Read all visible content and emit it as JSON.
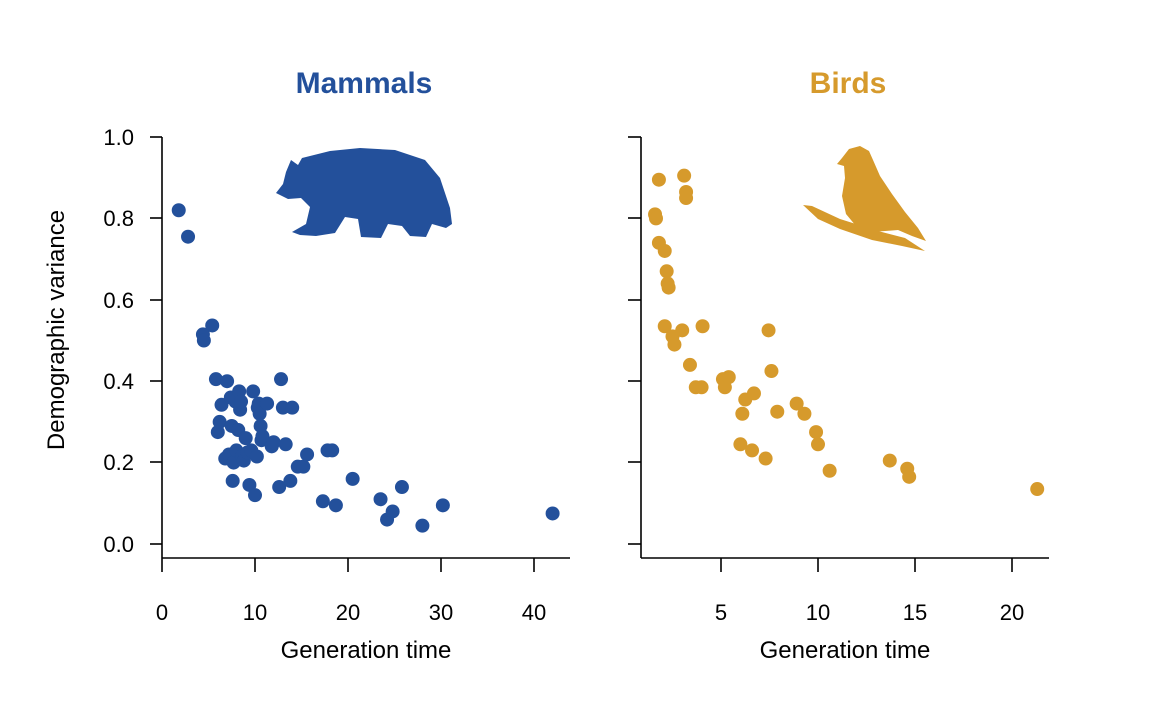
{
  "colors": {
    "mammals": "#23509b",
    "birds": "#d69a2c"
  },
  "shared": {
    "ylabel": "Demographic variance"
  },
  "chart_data": [
    {
      "type": "scatter",
      "title": "Mammals",
      "xlabel": "Generation time",
      "ylabel": "Demographic variance",
      "xlim": [
        0,
        44
      ],
      "ylim": [
        0,
        1.0
      ],
      "xticks": [
        "0",
        "10",
        "20",
        "30",
        "40"
      ],
      "yticks": [
        "0.0",
        "0.2",
        "0.4",
        "0.6",
        "0.8",
        "1.0"
      ],
      "icon": "bear-silhouette-icon",
      "color": "#23509b",
      "points": [
        [
          1.8,
          0.82
        ],
        [
          2.8,
          0.755
        ],
        [
          4.4,
          0.515
        ],
        [
          4.5,
          0.5
        ],
        [
          5.4,
          0.537
        ],
        [
          5.8,
          0.405
        ],
        [
          6.0,
          0.275
        ],
        [
          6.2,
          0.3
        ],
        [
          6.4,
          0.342
        ],
        [
          6.8,
          0.21
        ],
        [
          7.0,
          0.4
        ],
        [
          7.2,
          0.22
        ],
        [
          7.4,
          0.36
        ],
        [
          7.5,
          0.29
        ],
        [
          7.6,
          0.155
        ],
        [
          7.7,
          0.2
        ],
        [
          7.9,
          0.35
        ],
        [
          8.0,
          0.23
        ],
        [
          8.2,
          0.28
        ],
        [
          8.3,
          0.375
        ],
        [
          8.4,
          0.33
        ],
        [
          8.5,
          0.35
        ],
        [
          8.6,
          0.215
        ],
        [
          8.8,
          0.205
        ],
        [
          9.0,
          0.26
        ],
        [
          9.2,
          0.225
        ],
        [
          9.4,
          0.145
        ],
        [
          9.6,
          0.23
        ],
        [
          9.8,
          0.375
        ],
        [
          10.0,
          0.12
        ],
        [
          10.2,
          0.215
        ],
        [
          10.3,
          0.335
        ],
        [
          10.4,
          0.345
        ],
        [
          10.5,
          0.32
        ],
        [
          10.6,
          0.29
        ],
        [
          10.7,
          0.255
        ],
        [
          10.8,
          0.265
        ],
        [
          11.3,
          0.345
        ],
        [
          11.8,
          0.24
        ],
        [
          12.0,
          0.25
        ],
        [
          12.6,
          0.14
        ],
        [
          12.8,
          0.405
        ],
        [
          13.0,
          0.335
        ],
        [
          13.3,
          0.245
        ],
        [
          13.8,
          0.155
        ],
        [
          14.0,
          0.335
        ],
        [
          14.6,
          0.19
        ],
        [
          15.2,
          0.19
        ],
        [
          15.6,
          0.22
        ],
        [
          17.3,
          0.105
        ],
        [
          17.8,
          0.23
        ],
        [
          18.3,
          0.23
        ],
        [
          18.7,
          0.095
        ],
        [
          20.5,
          0.16
        ],
        [
          23.5,
          0.11
        ],
        [
          24.2,
          0.06
        ],
        [
          24.8,
          0.08
        ],
        [
          25.8,
          0.14
        ],
        [
          28.0,
          0.045
        ],
        [
          30.2,
          0.095
        ],
        [
          42.0,
          0.075
        ]
      ]
    },
    {
      "type": "scatter",
      "title": "Birds",
      "xlabel": "Generation time",
      "ylabel": "",
      "xlim": [
        1.2,
        22
      ],
      "ylim": [
        0,
        1.0
      ],
      "xticks": [
        "5",
        "10",
        "15",
        "20"
      ],
      "yticks": [
        "0.0",
        "0.2",
        "0.4",
        "0.6",
        "0.8",
        "1.0"
      ],
      "icon": "bird-on-branch-icon",
      "color": "#d69a2c",
      "points": [
        [
          1.6,
          0.81
        ],
        [
          1.65,
          0.8
        ],
        [
          1.8,
          0.895
        ],
        [
          1.8,
          0.74
        ],
        [
          2.1,
          0.72
        ],
        [
          2.1,
          0.535
        ],
        [
          2.2,
          0.67
        ],
        [
          2.25,
          0.64
        ],
        [
          2.3,
          0.63
        ],
        [
          2.5,
          0.51
        ],
        [
          2.6,
          0.49
        ],
        [
          3.0,
          0.525
        ],
        [
          3.1,
          0.905
        ],
        [
          3.2,
          0.865
        ],
        [
          3.2,
          0.85
        ],
        [
          3.4,
          0.44
        ],
        [
          3.7,
          0.385
        ],
        [
          4.0,
          0.385
        ],
        [
          4.05,
          0.535
        ],
        [
          5.1,
          0.405
        ],
        [
          5.2,
          0.385
        ],
        [
          5.4,
          0.41
        ],
        [
          6.0,
          0.245
        ],
        [
          6.1,
          0.32
        ],
        [
          6.25,
          0.355
        ],
        [
          6.6,
          0.23
        ],
        [
          6.7,
          0.37
        ],
        [
          7.3,
          0.21
        ],
        [
          7.45,
          0.525
        ],
        [
          7.6,
          0.425
        ],
        [
          7.9,
          0.325
        ],
        [
          8.9,
          0.345
        ],
        [
          9.3,
          0.32
        ],
        [
          9.9,
          0.275
        ],
        [
          10.0,
          0.245
        ],
        [
          10.6,
          0.18
        ],
        [
          13.7,
          0.205
        ],
        [
          14.6,
          0.185
        ],
        [
          14.7,
          0.165
        ],
        [
          21.3,
          0.135
        ]
      ]
    }
  ]
}
